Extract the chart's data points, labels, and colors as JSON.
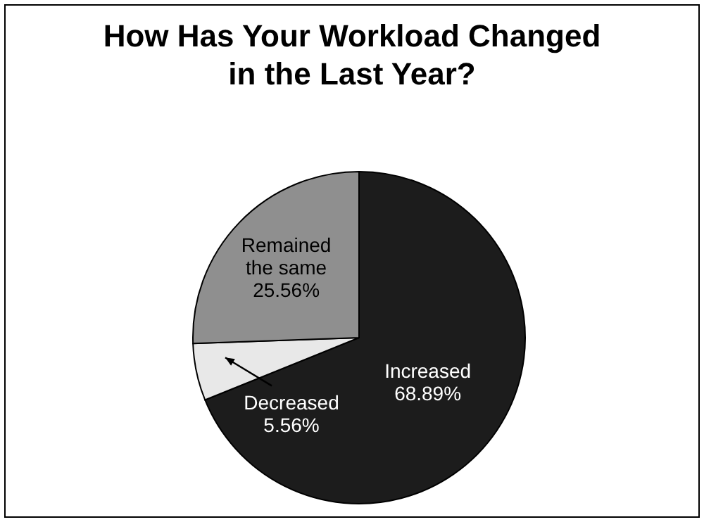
{
  "chart_data": {
    "type": "pie",
    "title": "How Has Your Workload Changed\nin the Last Year?",
    "categories": [
      "Increased",
      "Decreased",
      "Remained the same"
    ],
    "values": [
      68.89,
      5.56,
      25.56
    ],
    "colors": [
      "#1c1c1c",
      "#e8e8e8",
      "#8f8f8f"
    ],
    "value_labels": [
      "68.89%",
      "5.56%",
      "25.56%"
    ]
  }
}
